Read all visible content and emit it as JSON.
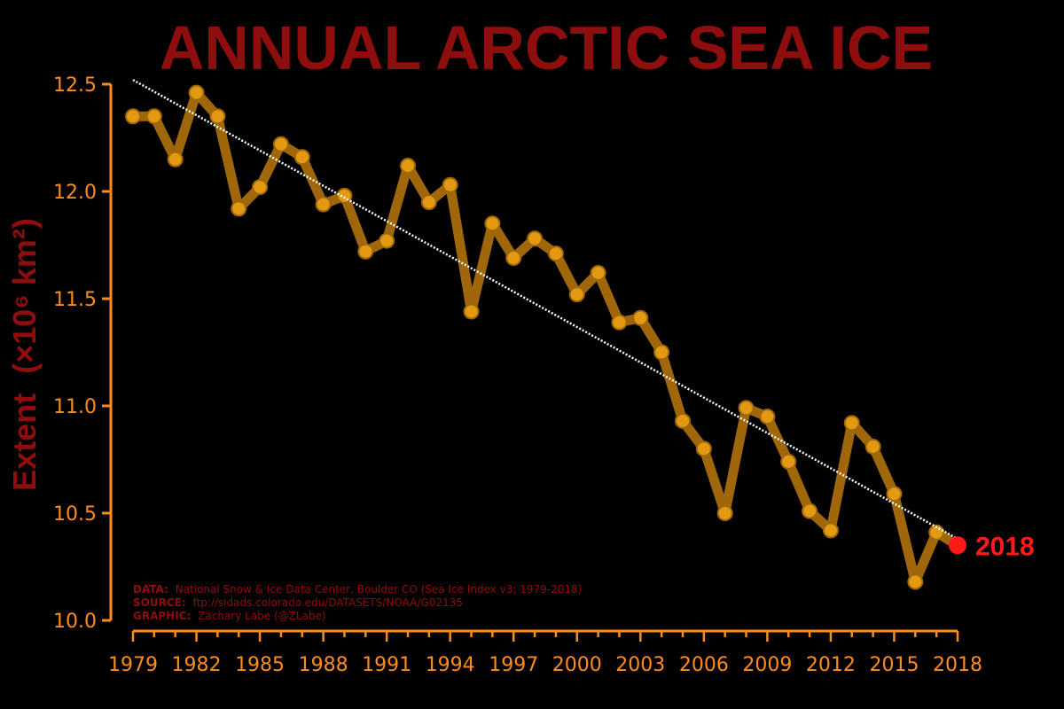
{
  "chart_data": {
    "type": "line",
    "title": "ANNUAL ARCTIC SEA ICE",
    "ylabel": "Extent",
    "ylabel_unit": "(×10⁶ km²)",
    "xlabel": "",
    "ylim": [
      10.0,
      12.5
    ],
    "xlim": [
      1979,
      2018
    ],
    "yticks": [
      "10.0",
      "10.5",
      "11.0",
      "11.5",
      "12.0",
      "12.5"
    ],
    "xticks": [
      "1979",
      "1982",
      "1985",
      "1988",
      "1991",
      "1994",
      "1997",
      "2000",
      "2003",
      "2006",
      "2009",
      "2012",
      "2015",
      "2018"
    ],
    "grid": false,
    "series": [
      {
        "x": [
          1979,
          1980,
          1981,
          1982,
          1983,
          1984,
          1985,
          1986,
          1987,
          1988,
          1989,
          1990,
          1991,
          1992,
          1993,
          1994,
          1995,
          1996,
          1997,
          1998,
          1999,
          2000,
          2001,
          2002,
          2003,
          2004,
          2005,
          2006,
          2007,
          2008,
          2009,
          2010,
          2011,
          2012,
          2013,
          2014,
          2015,
          2016,
          2017,
          2018
        ],
        "values": [
          12.35,
          12.35,
          12.15,
          12.46,
          12.35,
          11.92,
          12.02,
          12.22,
          12.16,
          11.94,
          11.98,
          11.72,
          11.77,
          12.12,
          11.95,
          12.03,
          11.44,
          11.85,
          11.69,
          11.78,
          11.71,
          11.52,
          11.62,
          11.39,
          11.41,
          11.25,
          10.93,
          10.8,
          10.5,
          10.99,
          10.95,
          10.74,
          10.51,
          10.42,
          10.92,
          10.81,
          10.59,
          10.18,
          10.41,
          10.35
        ]
      }
    ],
    "trend": {
      "x": [
        1979,
        2018
      ],
      "values": [
        12.52,
        10.38
      ]
    },
    "highlight": {
      "x": 2018,
      "value": 10.35,
      "label": "2018"
    },
    "colors": {
      "line": "#a0670a",
      "marker": "#e39a12",
      "axis": "#ff8c1a",
      "title": "#8e0e0e",
      "highlight": "#ff1a1a",
      "trend": "#ffffff"
    }
  },
  "credits": {
    "data_label": "DATA:",
    "data_text": "National Snow & Ice Data Center, Boulder CO (Sea Ice Index v3; 1979-2018)",
    "source_label": "SOURCE:",
    "source_text": "ftp://sidads.colorado.edu/DATASETS/NOAA/G02135",
    "graphic_label": "GRAPHIC:",
    "graphic_text": "Zachary Labe (@ZLabe)"
  }
}
